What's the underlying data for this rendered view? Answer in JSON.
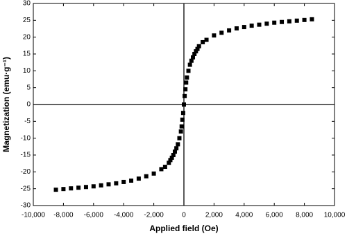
{
  "chart_data": {
    "type": "scatter",
    "x_label": "Applied field (Oe)",
    "y_label": "Magnetization (emu·g⁻¹)",
    "series": [
      {
        "color": "#000000",
        "x": [
          -8500,
          -8000,
          -7500,
          -7000,
          -6500,
          -6000,
          -5500,
          -5000,
          -4500,
          -4000,
          -3500,
          -3000,
          -2500,
          -2000,
          -1500,
          -1250,
          -1000,
          -900,
          -800,
          -700,
          -600,
          -500,
          -400,
          -300,
          -200,
          -150,
          -100,
          -50,
          0,
          50,
          100,
          150,
          200,
          300,
          400,
          500,
          600,
          700,
          800,
          900,
          1000,
          1250,
          1500,
          2000,
          2500,
          3000,
          3500,
          4000,
          4500,
          5000,
          5500,
          6000,
          6500,
          7000,
          7500,
          8000,
          8500
        ],
        "y": [
          -25.3,
          -25.1,
          -24.9,
          -24.7,
          -24.5,
          -24.3,
          -24,
          -23.7,
          -23.4,
          -23,
          -22.6,
          -22,
          -21.3,
          -20.5,
          -19.2,
          -18.5,
          -17.3,
          -16.5,
          -15.8,
          -15,
          -14,
          -13,
          -11.8,
          -10,
          -8,
          -6.5,
          -4.5,
          -2.5,
          0,
          2.5,
          4.5,
          6.5,
          8,
          10,
          11.8,
          13,
          14,
          15,
          15.8,
          16.5,
          17.3,
          18.5,
          19.2,
          20.5,
          21.3,
          22,
          22.6,
          23,
          23.4,
          23.7,
          24,
          24.3,
          24.5,
          24.7,
          24.9,
          25.1,
          25.3
        ]
      }
    ],
    "xlim": [
      -10000,
      10000
    ],
    "xticks": [
      {
        "value": -10000,
        "label": "-10,000"
      },
      {
        "value": -8000,
        "label": "-8,000"
      },
      {
        "value": -6000,
        "label": "-6,000"
      },
      {
        "value": -4000,
        "label": "-4,000"
      },
      {
        "value": -2000,
        "label": "-2,000"
      },
      0,
      {
        "value": 2000,
        "label": "2,000"
      },
      {
        "value": 4000,
        "label": "4,000"
      },
      {
        "value": 6000,
        "label": "6,000"
      },
      {
        "value": 8000,
        "label": "8,000"
      },
      {
        "value": 10000,
        "label": "10,000"
      }
    ],
    "ylim": [
      -30,
      30
    ],
    "yticks": [
      -30,
      -25,
      -20,
      -15,
      -10,
      -5,
      0,
      5,
      10,
      15,
      20,
      25,
      30
    ]
  }
}
